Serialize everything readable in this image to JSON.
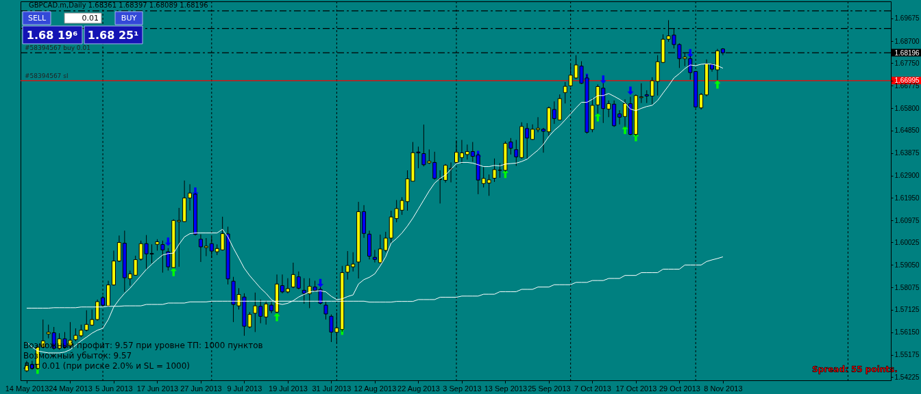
{
  "chart_data": {
    "type": "candlestick",
    "title": "GBPCAD.m,Daily  1.68361 1.68397 1.68089 1.68196",
    "categories": [
      "14 May 2013",
      null,
      null,
      null,
      null,
      null,
      null,
      null,
      "24 May 2013",
      null,
      null,
      null,
      null,
      null,
      null,
      null,
      "5 Jun 2013",
      null,
      null,
      null,
      null,
      null,
      null,
      null,
      "17 Jun 2013",
      null,
      null,
      null,
      null,
      null,
      null,
      null,
      "27 Jun 2013",
      null,
      null,
      null,
      null,
      null,
      null,
      null,
      "9 Jul 2013",
      null,
      null,
      null,
      null,
      null,
      null,
      null,
      "19 Jul 2013",
      null,
      null,
      null,
      null,
      null,
      null,
      null,
      "31 Jul 2013",
      null,
      null,
      null,
      null,
      null,
      null,
      null,
      "12 Aug 2013",
      null,
      null,
      null,
      null,
      null,
      null,
      null,
      "22 Aug 2013",
      null,
      null,
      null,
      null,
      null,
      null,
      null,
      "3 Sep 2013",
      null,
      null,
      null,
      null,
      null,
      null,
      null,
      "13 Sep 2013",
      null,
      null,
      null,
      null,
      null,
      null,
      null,
      "25 Sep 2013",
      null,
      null,
      null,
      null,
      null,
      null,
      null,
      "7 Oct 2013",
      null,
      null,
      null,
      null,
      null,
      null,
      null,
      "17 Oct 2013",
      null,
      null,
      null,
      null,
      null,
      null,
      null,
      "29 Oct 2013",
      null,
      null,
      null,
      null,
      null,
      null,
      null,
      "8 Nov 2013"
    ],
    "ohlc": [
      [
        1.5449,
        1.5492,
        1.5443,
        1.5472
      ],
      [
        1.5476,
        1.5492,
        1.5454,
        1.5459
      ],
      [
        1.5459,
        1.5562,
        1.5454,
        1.5551
      ],
      [
        1.5551,
        1.567,
        1.5546,
        1.5578
      ],
      [
        1.5608,
        1.5648,
        1.5589,
        1.5615
      ],
      [
        1.5613,
        1.5638,
        1.554,
        1.5546
      ],
      [
        1.5546,
        1.5611,
        1.554,
        1.5587
      ],
      [
        1.5587,
        1.5616,
        1.5544,
        1.5551
      ],
      [
        1.5557,
        1.5659,
        1.5546,
        1.5581
      ],
      [
        1.5583,
        1.5632,
        1.5576,
        1.5602
      ],
      [
        1.56,
        1.5648,
        1.5594,
        1.5624
      ],
      [
        1.5624,
        1.571,
        1.5619,
        1.5649
      ],
      [
        1.5646,
        1.5713,
        1.5643,
        1.567
      ],
      [
        1.567,
        1.5756,
        1.5665,
        1.5747
      ],
      [
        1.5764,
        1.5773,
        1.5727,
        1.5732
      ],
      [
        1.5729,
        1.5837,
        1.5724,
        1.5819
      ],
      [
        1.5819,
        1.5967,
        1.5816,
        1.5922
      ],
      [
        1.5922,
        1.6032,
        1.5918,
        1.6002
      ],
      [
        1.5999,
        1.6053,
        1.5789,
        1.585
      ],
      [
        1.5846,
        1.5881,
        1.5816,
        1.5867
      ],
      [
        1.5861,
        1.5945,
        1.5859,
        1.5928
      ],
      [
        1.593,
        1.601,
        1.5924,
        1.5997
      ],
      [
        1.5997,
        1.6034,
        1.5886,
        1.5953
      ],
      [
        1.5955,
        1.5994,
        1.5913,
        1.5952
      ],
      [
        1.5994,
        1.6016,
        1.5967,
        1.6005
      ],
      [
        1.5993,
        1.601,
        1.5872,
        1.597
      ],
      [
        1.5962,
        1.5978,
        1.5881,
        1.5897
      ],
      [
        1.5894,
        1.6102,
        1.5891,
        1.6097
      ],
      [
        1.6092,
        1.6151,
        1.5897,
        1.6097
      ],
      [
        1.6092,
        1.6269,
        1.6091,
        1.6194
      ],
      [
        1.6194,
        1.6253,
        1.614,
        1.6215
      ],
      [
        1.621,
        1.6215,
        1.6032,
        1.6037
      ],
      [
        1.6016,
        1.6037,
        1.5918,
        1.5983
      ],
      [
        1.598,
        1.6021,
        1.5943,
        1.5986
      ],
      [
        1.5997,
        1.6026,
        1.5935,
        1.5965
      ],
      [
        1.5962,
        1.5994,
        1.5948,
        1.5976
      ],
      [
        1.597,
        1.6113,
        1.5967,
        1.604
      ],
      [
        1.6039,
        1.607,
        1.5821,
        1.5845
      ],
      [
        1.5835,
        1.5854,
        1.5659,
        1.5735
      ],
      [
        1.5729,
        1.5805,
        1.5713,
        1.5778
      ],
      [
        1.5767,
        1.5783,
        1.56,
        1.5641
      ],
      [
        1.5638,
        1.5702,
        1.5632,
        1.5692
      ],
      [
        1.5697,
        1.5786,
        1.5616,
        1.5729
      ],
      [
        1.5727,
        1.5756,
        1.5654,
        1.5684
      ],
      [
        1.5681,
        1.5751,
        1.5648,
        1.5737
      ],
      [
        1.5732,
        1.5746,
        1.5697,
        1.5708
      ],
      [
        1.5702,
        1.5864,
        1.5697,
        1.5823
      ],
      [
        1.5816,
        1.5864,
        1.5783,
        1.5789
      ],
      [
        1.5789,
        1.5848,
        1.5783,
        1.5803
      ],
      [
        1.581,
        1.5915,
        1.5805,
        1.5864
      ],
      [
        1.5854,
        1.5877,
        1.58,
        1.5805
      ],
      [
        1.5796,
        1.5848,
        1.5738,
        1.5783
      ],
      [
        1.5781,
        1.5848,
        1.5719,
        1.5813
      ],
      [
        1.581,
        1.5837,
        1.5789,
        1.5796
      ],
      [
        1.58,
        1.581,
        1.5735,
        1.574
      ],
      [
        1.5732,
        1.5746,
        1.567,
        1.5694
      ],
      [
        1.5684,
        1.5692,
        1.5573,
        1.5616
      ],
      [
        1.5615,
        1.57,
        1.5568,
        1.5634
      ],
      [
        1.5627,
        1.5901,
        1.5617,
        1.5872
      ],
      [
        1.5874,
        1.5965,
        1.5842,
        1.5903
      ],
      [
        1.5897,
        1.596,
        1.5877,
        1.5909
      ],
      [
        1.5918,
        1.6177,
        1.5847,
        1.6135
      ],
      [
        1.6135,
        1.6163,
        1.6022,
        1.6041
      ],
      [
        1.6038,
        1.6053,
        1.5929,
        1.5943
      ],
      [
        1.5938,
        1.597,
        1.5916,
        1.5929
      ],
      [
        1.5915,
        1.6036,
        1.5913,
        1.5974
      ],
      [
        1.5968,
        1.6048,
        1.596,
        1.6021
      ],
      [
        1.6021,
        1.6139,
        1.6,
        1.6112
      ],
      [
        1.6105,
        1.6185,
        1.6089,
        1.6148
      ],
      [
        1.6141,
        1.6197,
        1.6121,
        1.6183
      ],
      [
        1.6178,
        1.6313,
        1.6139,
        1.6276
      ],
      [
        1.6266,
        1.6435,
        1.6266,
        1.6389
      ],
      [
        1.6392,
        1.6415,
        1.6322,
        1.6388
      ],
      [
        1.6385,
        1.651,
        1.633,
        1.6337
      ],
      [
        1.6345,
        1.6403,
        1.634,
        1.6352
      ],
      [
        1.6347,
        1.6393,
        1.6273,
        1.6278
      ],
      [
        1.6273,
        1.6313,
        1.617,
        1.6275
      ],
      [
        1.627,
        1.634,
        1.626,
        1.6335
      ],
      [
        1.6319,
        1.6347,
        1.6261,
        1.6321
      ],
      [
        1.6347,
        1.6442,
        1.6342,
        1.6391
      ],
      [
        1.6368,
        1.6444,
        1.6342,
        1.6388
      ],
      [
        1.6381,
        1.6424,
        1.6359,
        1.6394
      ],
      [
        1.6394,
        1.6435,
        1.635,
        1.6373
      ],
      [
        1.6379,
        1.6386,
        1.621,
        1.6271
      ],
      [
        1.6256,
        1.6327,
        1.6239,
        1.6278
      ],
      [
        1.6258,
        1.6295,
        1.6203,
        1.6272
      ],
      [
        1.6279,
        1.6364,
        1.6263,
        1.6316
      ],
      [
        1.6313,
        1.6344,
        1.6281,
        1.6314
      ],
      [
        1.6313,
        1.6438,
        1.6307,
        1.6429
      ],
      [
        1.6435,
        1.6452,
        1.6381,
        1.6408
      ],
      [
        1.6402,
        1.6444,
        1.6332,
        1.6371
      ],
      [
        1.6368,
        1.652,
        1.6363,
        1.6502
      ],
      [
        1.6493,
        1.6516,
        1.6363,
        1.6452
      ],
      [
        1.6446,
        1.6511,
        1.6444,
        1.649
      ],
      [
        1.6488,
        1.6542,
        1.6477,
        1.6494
      ],
      [
        1.649,
        1.6496,
        1.6389,
        1.6481
      ],
      [
        1.6479,
        1.6588,
        1.6461,
        1.6582
      ],
      [
        1.6575,
        1.661,
        1.6513,
        1.6536
      ],
      [
        1.653,
        1.664,
        1.6528,
        1.6622
      ],
      [
        1.6648,
        1.6693,
        1.6601,
        1.6675
      ],
      [
        1.6677,
        1.677,
        1.6672,
        1.6723
      ],
      [
        1.6711,
        1.6809,
        1.6707,
        1.6767
      ],
      [
        1.6762,
        1.6783,
        1.6685,
        1.6688
      ],
      [
        1.6711,
        1.6725,
        1.6471,
        1.6477
      ],
      [
        1.6489,
        1.6625,
        1.6477,
        1.6593
      ],
      [
        1.6595,
        1.6683,
        1.6556,
        1.6674
      ],
      [
        1.6667,
        1.6688,
        1.6517,
        1.6579
      ],
      [
        1.6577,
        1.6614,
        1.6542,
        1.66
      ],
      [
        1.6598,
        1.6614,
        1.65,
        1.6505
      ],
      [
        1.6556,
        1.6572,
        1.6511,
        1.6542
      ],
      [
        1.6545,
        1.6619,
        1.6498,
        1.6601
      ],
      [
        1.66,
        1.663,
        1.6464,
        1.6468
      ],
      [
        1.6468,
        1.664,
        1.6461,
        1.6635
      ],
      [
        1.6626,
        1.6688,
        1.6603,
        1.663
      ],
      [
        1.6639,
        1.6658,
        1.6603,
        1.6633
      ],
      [
        1.6633,
        1.6714,
        1.6598,
        1.6699
      ],
      [
        1.6696,
        1.6809,
        1.6635,
        1.6781
      ],
      [
        1.6778,
        1.6899,
        1.6775,
        1.6878
      ],
      [
        1.6878,
        1.696,
        1.6867,
        1.6892
      ],
      [
        1.6896,
        1.6926,
        1.6838,
        1.6855
      ],
      [
        1.6855,
        1.686,
        1.6754,
        1.6794
      ],
      [
        1.6794,
        1.682,
        1.6762,
        1.6801
      ],
      [
        1.6794,
        1.6806,
        1.6704,
        1.6734
      ],
      [
        1.6739,
        1.6741,
        1.6582,
        1.6586
      ],
      [
        1.6582,
        1.6646,
        1.6575,
        1.664
      ],
      [
        1.6638,
        1.6791,
        1.6632,
        1.6772
      ],
      [
        1.677,
        1.6775,
        1.6738,
        1.6749
      ],
      [
        1.6746,
        1.6836,
        1.6701,
        1.6828
      ],
      [
        1.68361,
        1.68397,
        1.68089,
        1.68196
      ]
    ],
    "colors": [
      "#ffff00",
      "#0000ff",
      "#ffff00",
      "#ffff00",
      "#ffff00",
      "#0000ff",
      "#ffff00",
      "#0000ff",
      "#ffff00",
      "#ffff00",
      "#ffff00",
      "#ffff00",
      "#ffff00",
      "#ffff00",
      "#0000ff",
      "#ffff00",
      "#ffff00",
      "#ffff00",
      "#0000ff",
      "#ffff00",
      "#ffff00",
      "#ffff00",
      "#0000ff",
      "#0000ff",
      "#ffff00",
      "#0000ff",
      "#0000ff",
      "#ffff00",
      "#ffff00",
      "#ffff00",
      "#ffff00",
      "#0000ff",
      "#0000ff",
      "#ffff00",
      "#0000ff",
      "#ffff00",
      "#ffff00",
      "#0000ff",
      "#0000ff",
      "#ffff00",
      "#0000ff",
      "#ffff00",
      "#ffff00",
      "#0000ff",
      "#ffff00",
      "#0000ff",
      "#ffff00",
      "#0000ff",
      "#ffff00",
      "#ffff00",
      "#0000ff",
      "#0000ff",
      "#ffff00",
      "#0000ff",
      "#0000ff",
      "#0000ff",
      "#0000ff",
      "#ffff00",
      "#ffff00",
      "#ffff00",
      "#ffff00",
      "#ffff00",
      "#0000ff",
      "#0000ff",
      "#0000ff",
      "#ffff00",
      "#ffff00",
      "#ffff00",
      "#ffff00",
      "#ffff00",
      "#ffff00",
      "#ffff00",
      "#0000ff",
      "#0000ff",
      "#ffff00",
      "#0000ff",
      "#ffff00",
      "#ffff00",
      "#ffff00",
      "#ffff00",
      "#ffff00",
      "#ffff00",
      "#0000ff",
      "#0000ff",
      "#ffff00",
      "#ffff00",
      "#ffff00",
      "#ffff00",
      "#ffff00",
      "#0000ff",
      "#0000ff",
      "#ffff00",
      "#0000ff",
      "#ffff00",
      "#ffff00",
      "#0000ff",
      "#ffff00",
      "#0000ff",
      "#ffff00",
      "#ffff00",
      "#ffff00",
      "#ffff00",
      "#0000ff",
      "#0000ff",
      "#ffff00",
      "#ffff00",
      "#0000ff",
      "#ffff00",
      "#0000ff",
      "#0000ff",
      "#ffff00",
      "#0000ff",
      "#ffff00",
      "#ffff00",
      "#0000ff",
      "#ffff00",
      "#ffff00",
      "#ffff00",
      "#ffff00",
      "#0000ff",
      "#0000ff",
      "#ffff00",
      "#0000ff",
      "#0000ff",
      "#ffff00",
      "#ffff00",
      "#0000ff",
      "#ffff00",
      "#0000ff"
    ],
    "series": [
      {
        "type": "line",
        "color": "#ffffff",
        "values": [
          1.5573,
          1.5551,
          1.5535,
          1.553,
          1.5526,
          1.5526,
          1.5526,
          1.553,
          1.554,
          1.5559,
          1.5578,
          1.5594,
          1.5611,
          1.5624,
          1.5632,
          1.567,
          1.5724,
          1.5756,
          1.5783,
          1.5805,
          1.5832,
          1.5859,
          1.5886,
          1.5908,
          1.5929,
          1.5948,
          1.5954,
          1.5956,
          1.5994,
          1.6026,
          1.604,
          1.6043,
          1.6043,
          1.6043,
          1.6043,
          1.6043,
          1.6059,
          1.6026,
          1.5978,
          1.5935,
          1.5891,
          1.5859,
          1.5832,
          1.5805,
          1.5783,
          1.5756,
          1.574,
          1.5735,
          1.574,
          1.5751,
          1.5767,
          1.5778,
          1.5789,
          1.5792,
          1.5794,
          1.5789,
          1.577,
          1.5756,
          1.5759,
          1.5769,
          1.5776,
          1.5823,
          1.5842,
          1.5852,
          1.5867,
          1.5901,
          1.594,
          1.5999,
          1.6019,
          1.6043,
          1.6073,
          1.6107,
          1.6146,
          1.6185,
          1.6224,
          1.6258,
          1.6278,
          1.6293,
          1.6317,
          1.6342,
          1.6347,
          1.6347,
          1.6344,
          1.6337,
          1.6329,
          1.6329,
          1.6334,
          1.6332,
          1.634,
          1.6342,
          1.6344,
          1.6351,
          1.6361,
          1.6381,
          1.64,
          1.6425,
          1.6459,
          1.6485,
          1.6505,
          1.653,
          1.6556,
          1.6582,
          1.6606,
          1.6606,
          1.6619,
          1.6635,
          1.6635,
          1.6644,
          1.6632,
          1.6619,
          1.6603,
          1.6577,
          1.657,
          1.658,
          1.6588,
          1.6593,
          1.6614,
          1.6646,
          1.6677,
          1.6711,
          1.673,
          1.6751,
          1.6767,
          1.6764,
          1.677,
          1.6772,
          1.677,
          1.6764,
          1.6753
        ]
      },
      {
        "type": "line",
        "color": "#ffffff",
        "values": [
          1.5719,
          1.5719,
          1.5719,
          1.5719,
          1.5719,
          1.5721,
          1.5721,
          1.5721,
          1.5721,
          1.5721,
          1.5724,
          1.5724,
          1.5724,
          1.5724,
          1.5724,
          1.5727,
          1.5727,
          1.5727,
          1.5729,
          1.5729,
          1.5729,
          1.5729,
          1.5735,
          1.5735,
          1.5735,
          1.5735,
          1.5741,
          1.5741,
          1.5741,
          1.5741,
          1.5746,
          1.5746,
          1.5746,
          1.5746,
          1.5749,
          1.5749,
          1.5749,
          1.5749,
          1.5749,
          1.5749,
          1.5749,
          1.5749,
          1.5749,
          1.5749,
          1.5749,
          1.5749,
          1.5749,
          1.5749,
          1.5749,
          1.5749,
          1.5749,
          1.5749,
          1.5749,
          1.5749,
          1.5749,
          1.5749,
          1.5749,
          1.5749,
          1.5749,
          1.5749,
          1.5749,
          1.5749,
          1.5749,
          1.5745,
          1.5745,
          1.5745,
          1.5745,
          1.5745,
          1.5748,
          1.5748,
          1.5748,
          1.5748,
          1.5756,
          1.5756,
          1.5756,
          1.5756,
          1.5766,
          1.5766,
          1.5766,
          1.5766,
          1.5771,
          1.5771,
          1.5771,
          1.5771,
          1.5779,
          1.5779,
          1.5779,
          1.579,
          1.579,
          1.579,
          1.579,
          1.58,
          1.58,
          1.58,
          1.581,
          1.581,
          1.581,
          1.582,
          1.582,
          1.582,
          1.582,
          1.583,
          1.583,
          1.583,
          1.5838,
          1.5838,
          1.5838,
          1.5847,
          1.5847,
          1.5847,
          1.586,
          1.586,
          1.586,
          1.5872,
          1.5872,
          1.5872,
          1.5872,
          1.5887,
          1.5887,
          1.5887,
          1.5887,
          1.5905,
          1.5905,
          1.5905,
          1.5905,
          1.592,
          1.5927,
          1.5933,
          1.594
        ]
      },
      {
        "type": "scatter",
        "color": "#0000ff",
        "marker": "triangle-down",
        "values": [
          null,
          null,
          null,
          null,
          null,
          null,
          null,
          null,
          null,
          null,
          null,
          null,
          null,
          null,
          null,
          null,
          null,
          null,
          null,
          null,
          null,
          null,
          null,
          null,
          null,
          null,
          1.6005,
          null,
          null,
          null,
          null,
          1.6221,
          null,
          null,
          null,
          null,
          null,
          null,
          null,
          null,
          null,
          null,
          null,
          null,
          null,
          null,
          null,
          null,
          null,
          null,
          null,
          null,
          null,
          null,
          1.5827,
          null,
          null,
          null,
          null,
          null,
          null,
          null,
          null,
          null,
          null,
          null,
          null,
          null,
          null,
          null,
          null,
          null,
          null,
          null,
          null,
          null,
          null,
          null,
          null,
          null,
          null,
          null,
          null,
          1.6379,
          null,
          null,
          null,
          null,
          null,
          null,
          null,
          null,
          null,
          null,
          null,
          null,
          null,
          null,
          null,
          null,
          null,
          null,
          null,
          1.6711,
          null,
          null,
          1.6704,
          null,
          null,
          null,
          null,
          1.6656,
          null,
          null,
          null,
          null,
          null,
          null,
          null,
          null,
          null,
          null,
          1.6817,
          null,
          null,
          null,
          null,
          null,
          null
        ]
      },
      {
        "type": "scatter",
        "color": "#00ff00",
        "marker": "triangle",
        "values": [
          null,
          null,
          1.5454,
          null,
          null,
          null,
          null,
          null,
          null,
          null,
          null,
          null,
          null,
          null,
          null,
          null,
          null,
          null,
          null,
          null,
          null,
          null,
          null,
          null,
          null,
          null,
          null,
          1.5875,
          null,
          null,
          null,
          null,
          null,
          null,
          null,
          null,
          null,
          null,
          null,
          null,
          null,
          null,
          null,
          null,
          null,
          null,
          1.5681,
          null,
          null,
          null,
          null,
          null,
          null,
          null,
          null,
          null,
          null,
          null,
          1.5622,
          null,
          null,
          null,
          null,
          null,
          null,
          null,
          null,
          null,
          null,
          null,
          null,
          null,
          null,
          null,
          null,
          null,
          null,
          null,
          null,
          null,
          null,
          null,
          null,
          null,
          null,
          null,
          null,
          null,
          1.6298,
          null,
          null,
          null,
          null,
          null,
          null,
          null,
          null,
          null,
          null,
          null,
          null,
          null,
          null,
          null,
          null,
          1.6542,
          null,
          null,
          null,
          null,
          1.6487,
          null,
          1.6456,
          null,
          null,
          null,
          null,
          null,
          null,
          null,
          null,
          null,
          null,
          null,
          null,
          null,
          null,
          1.6683,
          null
        ]
      }
    ],
    "ylim": [
      1.5408,
      1.7041
    ],
    "yticks": [
      {
        "value": 1.69675,
        "label": "1.69675"
      },
      {
        "value": 1.687,
        "label": "1.68700"
      },
      {
        "value": 1.6775,
        "label": "1.67750"
      },
      {
        "value": 1.66775,
        "label": "1.66775"
      },
      {
        "value": 1.658,
        "label": "1.65800"
      },
      {
        "value": 1.6485,
        "label": "1.64850"
      },
      {
        "value": 1.63875,
        "label": "1.63875"
      },
      {
        "value": 1.629,
        "label": "1.62900"
      },
      {
        "value": 1.6195,
        "label": "1.61950"
      },
      {
        "value": 1.60975,
        "label": "1.60975"
      },
      {
        "value": 1.60025,
        "label": "1.60025"
      },
      {
        "value": 1.5905,
        "label": "1.59050"
      },
      {
        "value": 1.58075,
        "label": "1.58075"
      },
      {
        "value": 1.57125,
        "label": "1.57125"
      },
      {
        "value": 1.5615,
        "label": "1.56150"
      },
      {
        "value": 1.55175,
        "label": "1.55175"
      },
      {
        "value": 1.54225,
        "label": "1.54225"
      },
      {
        "value": 1.68196,
        "label": "1.68196"
      },
      {
        "value": 1.66995,
        "label": "1.66995"
      }
    ],
    "grid": false,
    "ref_lines": [
      {
        "axis": "y",
        "value": 1.7,
        "color": "#000000",
        "line_style": "dashed"
      },
      {
        "axis": "y",
        "value": 1.6924,
        "color": "#000000",
        "line_style": "dashed"
      },
      {
        "axis": "y",
        "value": 1.68196,
        "label": "#58394567 buy 0.01",
        "color": "#000000",
        "line_style": "dashed"
      },
      {
        "axis": "y",
        "value": 1.66995,
        "label": "#58394567 sl",
        "color": "#ff0000",
        "line_style": "solid"
      }
    ],
    "annotations": [
      "SELL",
      "0.01",
      "BUY",
      "1.68 19⁶",
      "1.68 25¹",
      "Возможный профит: 9.57 при уровне ТП: 1000 пунктов",
      "Возможный убыток: 9.57",
      "Лот 0.01 (при риске 2.0% и SL = 1000)",
      "Spread: 55 points."
    ]
  }
}
